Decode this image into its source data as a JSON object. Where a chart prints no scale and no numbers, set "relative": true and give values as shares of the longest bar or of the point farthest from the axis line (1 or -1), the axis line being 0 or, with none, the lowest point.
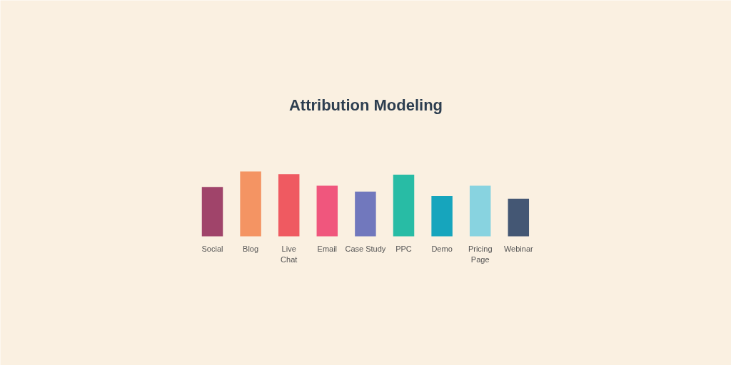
{
  "chart_data": {
    "type": "bar",
    "title": "Attribution Modeling",
    "relative": true,
    "categories": [
      "Social",
      "Blog",
      "Live\nChat",
      "Email",
      "Case Study",
      "PPC",
      "Demo",
      "Pricing\nPage",
      "Webinar"
    ],
    "values": [
      0.76,
      1,
      0.96,
      0.78,
      0.69,
      0.95,
      0.62,
      0.78,
      0.58
    ],
    "colors": [
      "#a0446a",
      "#f49463",
      "#ef5a61",
      "#f0567d",
      "#7178bd",
      "#28bca5",
      "#16a5bd",
      "#88d3e0",
      "#445774"
    ],
    "grid": false
  }
}
